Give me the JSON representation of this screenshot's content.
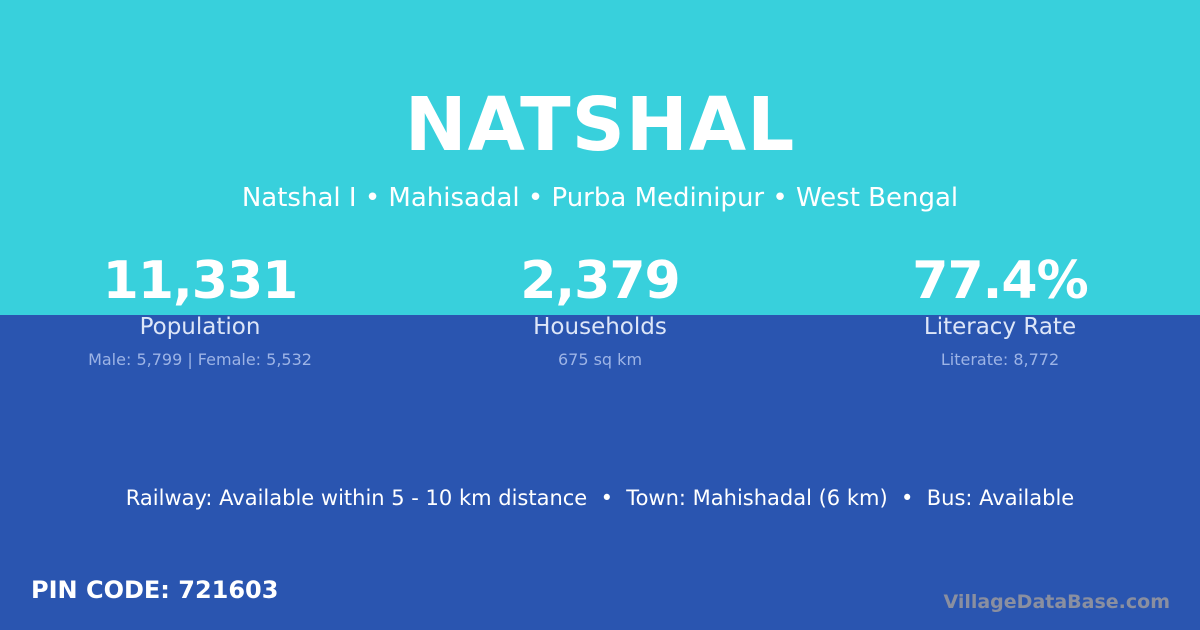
{
  "title": "NATSHAL",
  "subtitle": "Natshal I • Mahisadal • Purba Medinipur • West Bengal",
  "stats": [
    {
      "value": "11,331",
      "label": "Population",
      "detail": "Male: 5,799 | Female: 5,532"
    },
    {
      "value": "2,379",
      "label": "Households",
      "detail": "675 sq km"
    },
    {
      "value": "77.4%",
      "label": "Literacy Rate",
      "detail": "Literate: 8,772"
    }
  ],
  "facts": "Railway: Available within 5 - 10 km distance  •  Town: Mahishadal (6 km)  •  Bus: Available",
  "pin": "PIN CODE: 721603",
  "brand": "VillageDataBase.com",
  "colors": {
    "top": "#38d0dc",
    "bottom": "#2a55b0"
  }
}
